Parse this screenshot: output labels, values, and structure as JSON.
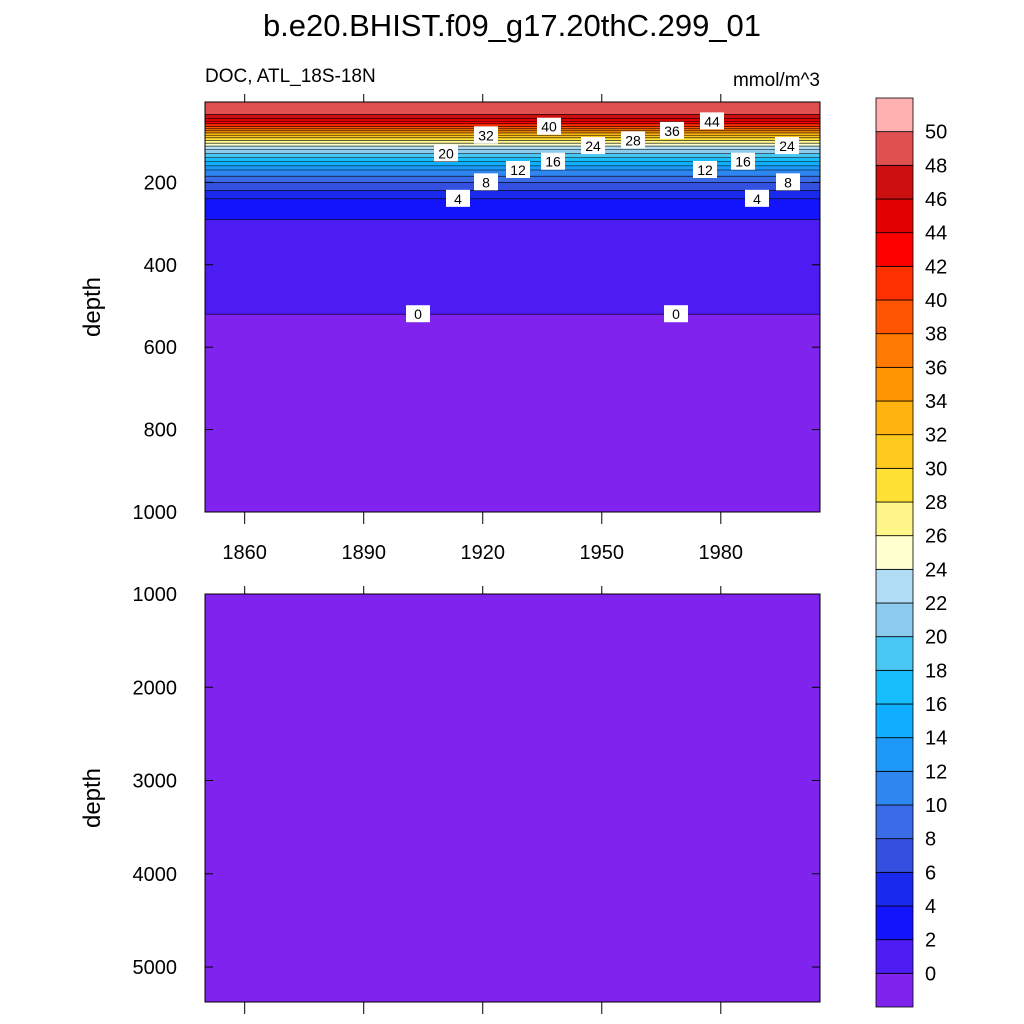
{
  "chart_data": {
    "type": "contour",
    "title": "b.e20.BHIST.f09_g17.20thC.299_01",
    "subtitle_left": "DOC, ATL_18S-18N",
    "subtitle_right": "mmol/m^3",
    "levels": [
      0,
      2,
      4,
      6,
      8,
      10,
      12,
      14,
      16,
      18,
      20,
      22,
      24,
      26,
      28,
      30,
      32,
      34,
      36,
      38,
      40,
      42,
      44,
      46,
      48,
      50
    ],
    "colors": [
      "#8023ee",
      "#4c1cf2",
      "#1414fc",
      "#1a2aec",
      "#3350e0",
      "#3a6ce8",
      "#2e86f0",
      "#1b98f8",
      "#10aefe",
      "#18befc",
      "#48c6f4",
      "#8acbee",
      "#b0dcf4",
      "#ffffd0",
      "#fff68a",
      "#ffe135",
      "#ffca20",
      "#ffb30f",
      "#ff9500",
      "#ff7a00",
      "#ff5500",
      "#ff3000",
      "#ff0000",
      "#e00000",
      "#cc1010",
      "#e05050",
      "#ffb0b0"
    ],
    "xlim": [
      1850,
      2005
    ],
    "xticks": [
      1860,
      1890,
      1920,
      1950,
      1980
    ],
    "panels": [
      {
        "ylabel": "depth",
        "ylim": [
          5,
          1000
        ],
        "yticks": [
          200,
          400,
          600,
          800,
          1000
        ],
        "isoline_depths": [
          520,
          290,
          240,
          220,
          200,
          185,
          170,
          160,
          150,
          140,
          130,
          120,
          112,
          105,
          98,
          92,
          86,
          80,
          75,
          70,
          65,
          58,
          52,
          45,
          35,
          null
        ]
      },
      {
        "ylabel": "depth",
        "ylim": [
          1000,
          5375
        ],
        "yticks": [
          1000,
          2000,
          3000,
          4000,
          5000
        ],
        "isoline_depths": []
      }
    ]
  }
}
